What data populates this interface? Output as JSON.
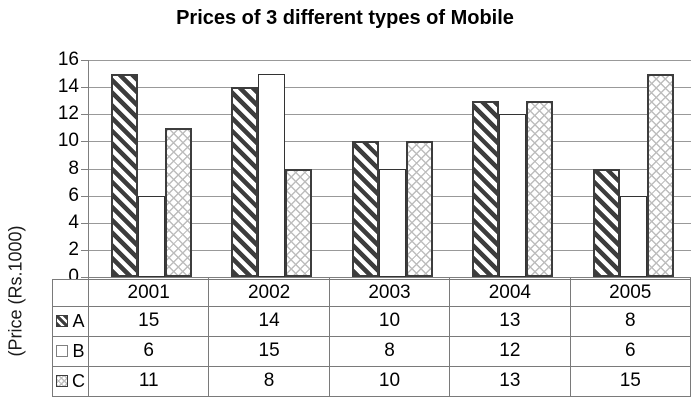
{
  "title": "Prices of 3 different types of Mobile",
  "y_axis": {
    "label": "(Price (Rs.1000)",
    "tick_labels": [
      "0",
      "2",
      "4",
      "6",
      "8",
      "10",
      "12",
      "14",
      "16"
    ]
  },
  "chart_data": {
    "type": "bar",
    "title": "Prices of 3 different types of Mobile",
    "categories": [
      "2001",
      "2002",
      "2003",
      "2004",
      "2005"
    ],
    "series": [
      {
        "name": "A",
        "pattern": "dark-diagonal-stripes",
        "values": [
          15,
          14,
          10,
          13,
          8
        ]
      },
      {
        "name": "B",
        "pattern": "plain-white",
        "values": [
          6,
          15,
          8,
          12,
          6
        ]
      },
      {
        "name": "C",
        "pattern": "light-crosshatch",
        "values": [
          11,
          8,
          10,
          13,
          15
        ]
      }
    ],
    "xlabel": "",
    "ylabel": "(Price (Rs.1000)",
    "ylim": [
      0,
      16
    ],
    "ytick_step": 2,
    "grid": true,
    "legend_position": "table-left-column"
  },
  "colors": {
    "bar_outline": "#3d3d3d",
    "bar_b_outline": "#333333",
    "crosshatch": "#bdbdbd",
    "gridline": "#999999",
    "axis": "#7f7f7f",
    "table_border": "#7a7a7a",
    "text": "#000000",
    "background": "#ffffff"
  }
}
